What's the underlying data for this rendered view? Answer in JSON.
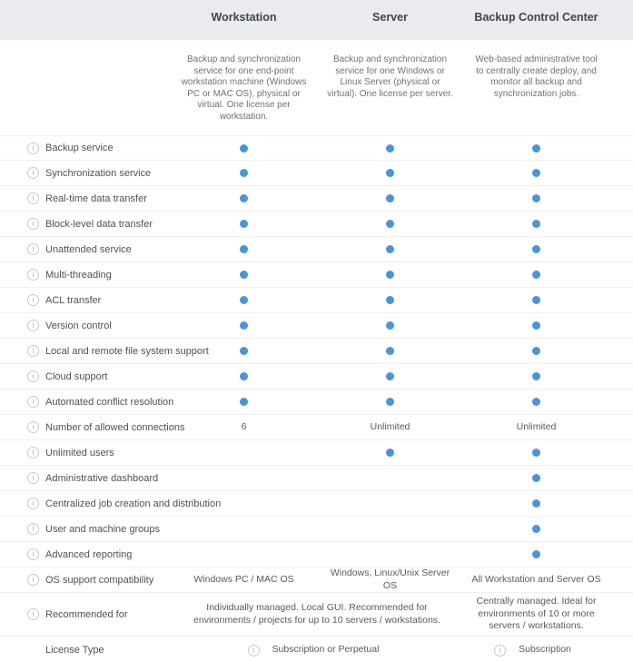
{
  "header": {
    "columns": [
      {
        "title": "Workstation",
        "description": "Backup and synchronization service for one end-point workstation machine (Windows PC or MAC OS), physical or virtual. One license per workstation."
      },
      {
        "title": "Server",
        "description": "Backup and synchronization service for one Windows or Linux Server (physical or virtual). One license per server."
      },
      {
        "title": "Backup Control Center",
        "description": "Web-based administrative tool to centrally create deploy, and monitor all backup and synchronization jobs."
      }
    ]
  },
  "icons": {
    "info": "i"
  },
  "colors": {
    "dot_blue": "#4a94da",
    "header_bg": "#e9ebee"
  },
  "features": [
    {
      "label": "Backup service",
      "info_icon": true,
      "cells": [
        {
          "dot": true
        },
        {
          "dot": true
        },
        {
          "dot": true
        }
      ]
    },
    {
      "label": "Synchronization service",
      "info_icon": true,
      "cells": [
        {
          "dot": true
        },
        {
          "dot": true
        },
        {
          "dot": true
        }
      ]
    },
    {
      "label": "Real-time data transfer",
      "info_icon": true,
      "cells": [
        {
          "dot": true
        },
        {
          "dot": true
        },
        {
          "dot": true
        }
      ]
    },
    {
      "label": "Block-level data transfer",
      "info_icon": true,
      "cells": [
        {
          "dot": true
        },
        {
          "dot": true
        },
        {
          "dot": true
        }
      ]
    },
    {
      "label": "Unattended service",
      "info_icon": true,
      "cells": [
        {
          "dot": true
        },
        {
          "dot": true
        },
        {
          "dot": true
        }
      ]
    },
    {
      "label": "Multi-threading",
      "info_icon": true,
      "cells": [
        {
          "dot": true
        },
        {
          "dot": true
        },
        {
          "dot": true
        }
      ]
    },
    {
      "label": "ACL transfer",
      "info_icon": true,
      "cells": [
        {
          "dot": true
        },
        {
          "dot": true
        },
        {
          "dot": true
        }
      ]
    },
    {
      "label": "Version control",
      "info_icon": true,
      "cells": [
        {
          "dot": true
        },
        {
          "dot": true
        },
        {
          "dot": true
        }
      ]
    },
    {
      "label": "Local and remote file system support",
      "info_icon": true,
      "cells": [
        {
          "dot": true
        },
        {
          "dot": true
        },
        {
          "dot": true
        }
      ]
    },
    {
      "label": "Cloud support",
      "info_icon": true,
      "cells": [
        {
          "dot": true
        },
        {
          "dot": true
        },
        {
          "dot": true
        }
      ]
    },
    {
      "label": "Automated conflict resolution",
      "info_icon": true,
      "cells": [
        {
          "dot": true
        },
        {
          "dot": true
        },
        {
          "dot": true
        }
      ]
    },
    {
      "label": "Number of allowed connections",
      "info_icon": true,
      "cells": [
        {
          "text": "6"
        },
        {
          "text": "Unlimited"
        },
        {
          "text": "Unlimited"
        }
      ]
    },
    {
      "label": "Unlimited users",
      "info_icon": true,
      "cells": [
        {},
        {
          "dot": true
        },
        {
          "dot": true
        }
      ]
    },
    {
      "label": "Administrative dashboard",
      "info_icon": true,
      "cells": [
        {},
        {},
        {
          "dot": true
        }
      ]
    },
    {
      "label": "Centralized job creation and distribution",
      "info_icon": true,
      "cells": [
        {},
        {},
        {
          "dot": true
        }
      ]
    },
    {
      "label": "User and machine groups",
      "info_icon": true,
      "cells": [
        {},
        {},
        {
          "dot": true
        }
      ]
    },
    {
      "label": "Advanced reporting",
      "info_icon": true,
      "cells": [
        {},
        {},
        {
          "dot": true
        }
      ]
    },
    {
      "label": "OS support compatibility",
      "info_icon": true,
      "cells": [
        {
          "text": "Windows PC / MAC OS"
        },
        {
          "text": "Windows, Linux/Unix Server OS"
        },
        {
          "text": "All Workstation and Server OS"
        }
      ]
    },
    {
      "label": "Recommended for",
      "info_icon": true,
      "height": "tall",
      "cells": [
        {
          "text": "Individually managed. Local GUI. Recommended for environments / projects for up to 10 servers / workstations.",
          "span": 2
        },
        {
          "text": "Centrally managed. Ideal for environments of 10 or more servers / workstations."
        }
      ]
    },
    {
      "label": "License Type",
      "info_icon": false,
      "height": "medium",
      "cells": [
        {
          "text": "Subscription or Perpetual",
          "span": 2,
          "info_icon": true
        },
        {
          "text": "Subscription",
          "info_icon": true
        }
      ]
    }
  ]
}
